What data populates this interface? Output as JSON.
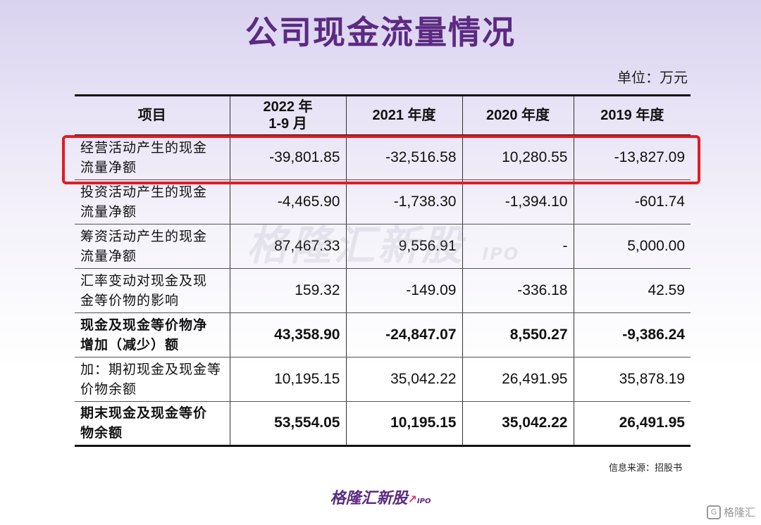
{
  "title": "公司现金流量情况",
  "unit": "单位：万元",
  "table": {
    "headers": [
      "项目",
      "2022 年\n1-9 月",
      "2021 年度",
      "2020 年度",
      "2019 年度"
    ],
    "rows": [
      {
        "label": "经营活动产生的现金\n流量净额",
        "values": [
          "-39,801.85",
          "-32,516.58",
          "10,280.55",
          "-13,827.09"
        ],
        "bold": false,
        "highlighted": true
      },
      {
        "label": "投资活动产生的现金\n流量净额",
        "values": [
          "-4,465.90",
          "-1,738.30",
          "-1,394.10",
          "-601.74"
        ],
        "bold": false
      },
      {
        "label": "筹资活动产生的现金\n流量净额",
        "values": [
          "87,467.33",
          "9,556.91",
          "-",
          "5,000.00"
        ],
        "bold": false
      },
      {
        "label": "汇率变动对现金及现\n金等价物的影响",
        "values": [
          "159.32",
          "-149.09",
          "-336.18",
          "42.59"
        ],
        "bold": false
      },
      {
        "label": "现金及现金等价物净\n增加（减少）额",
        "values": [
          "43,358.90",
          "-24,847.07",
          "8,550.27",
          "-9,386.24"
        ],
        "bold": true
      },
      {
        "label": "加：期初现金及现金等\n价物余额",
        "values": [
          "10,195.15",
          "35,042.22",
          "26,491.95",
          "35,878.19"
        ],
        "bold": false
      },
      {
        "label": "期末现金及现金等价\n物余额",
        "values": [
          "53,554.05",
          "10,195.15",
          "35,042.22",
          "26,491.95"
        ],
        "bold": true
      }
    ]
  },
  "source": "信息来源：招股书",
  "watermark": {
    "text": "格隆汇新股",
    "suffix": "IPO"
  },
  "brand": {
    "text": "格隆汇新股",
    "suffix": "IPO"
  },
  "corner_logo": {
    "text": "格隆汇",
    "icon": "g-logo-icon"
  },
  "colors": {
    "title": "#5b2a82",
    "highlight": "#e21b24"
  }
}
